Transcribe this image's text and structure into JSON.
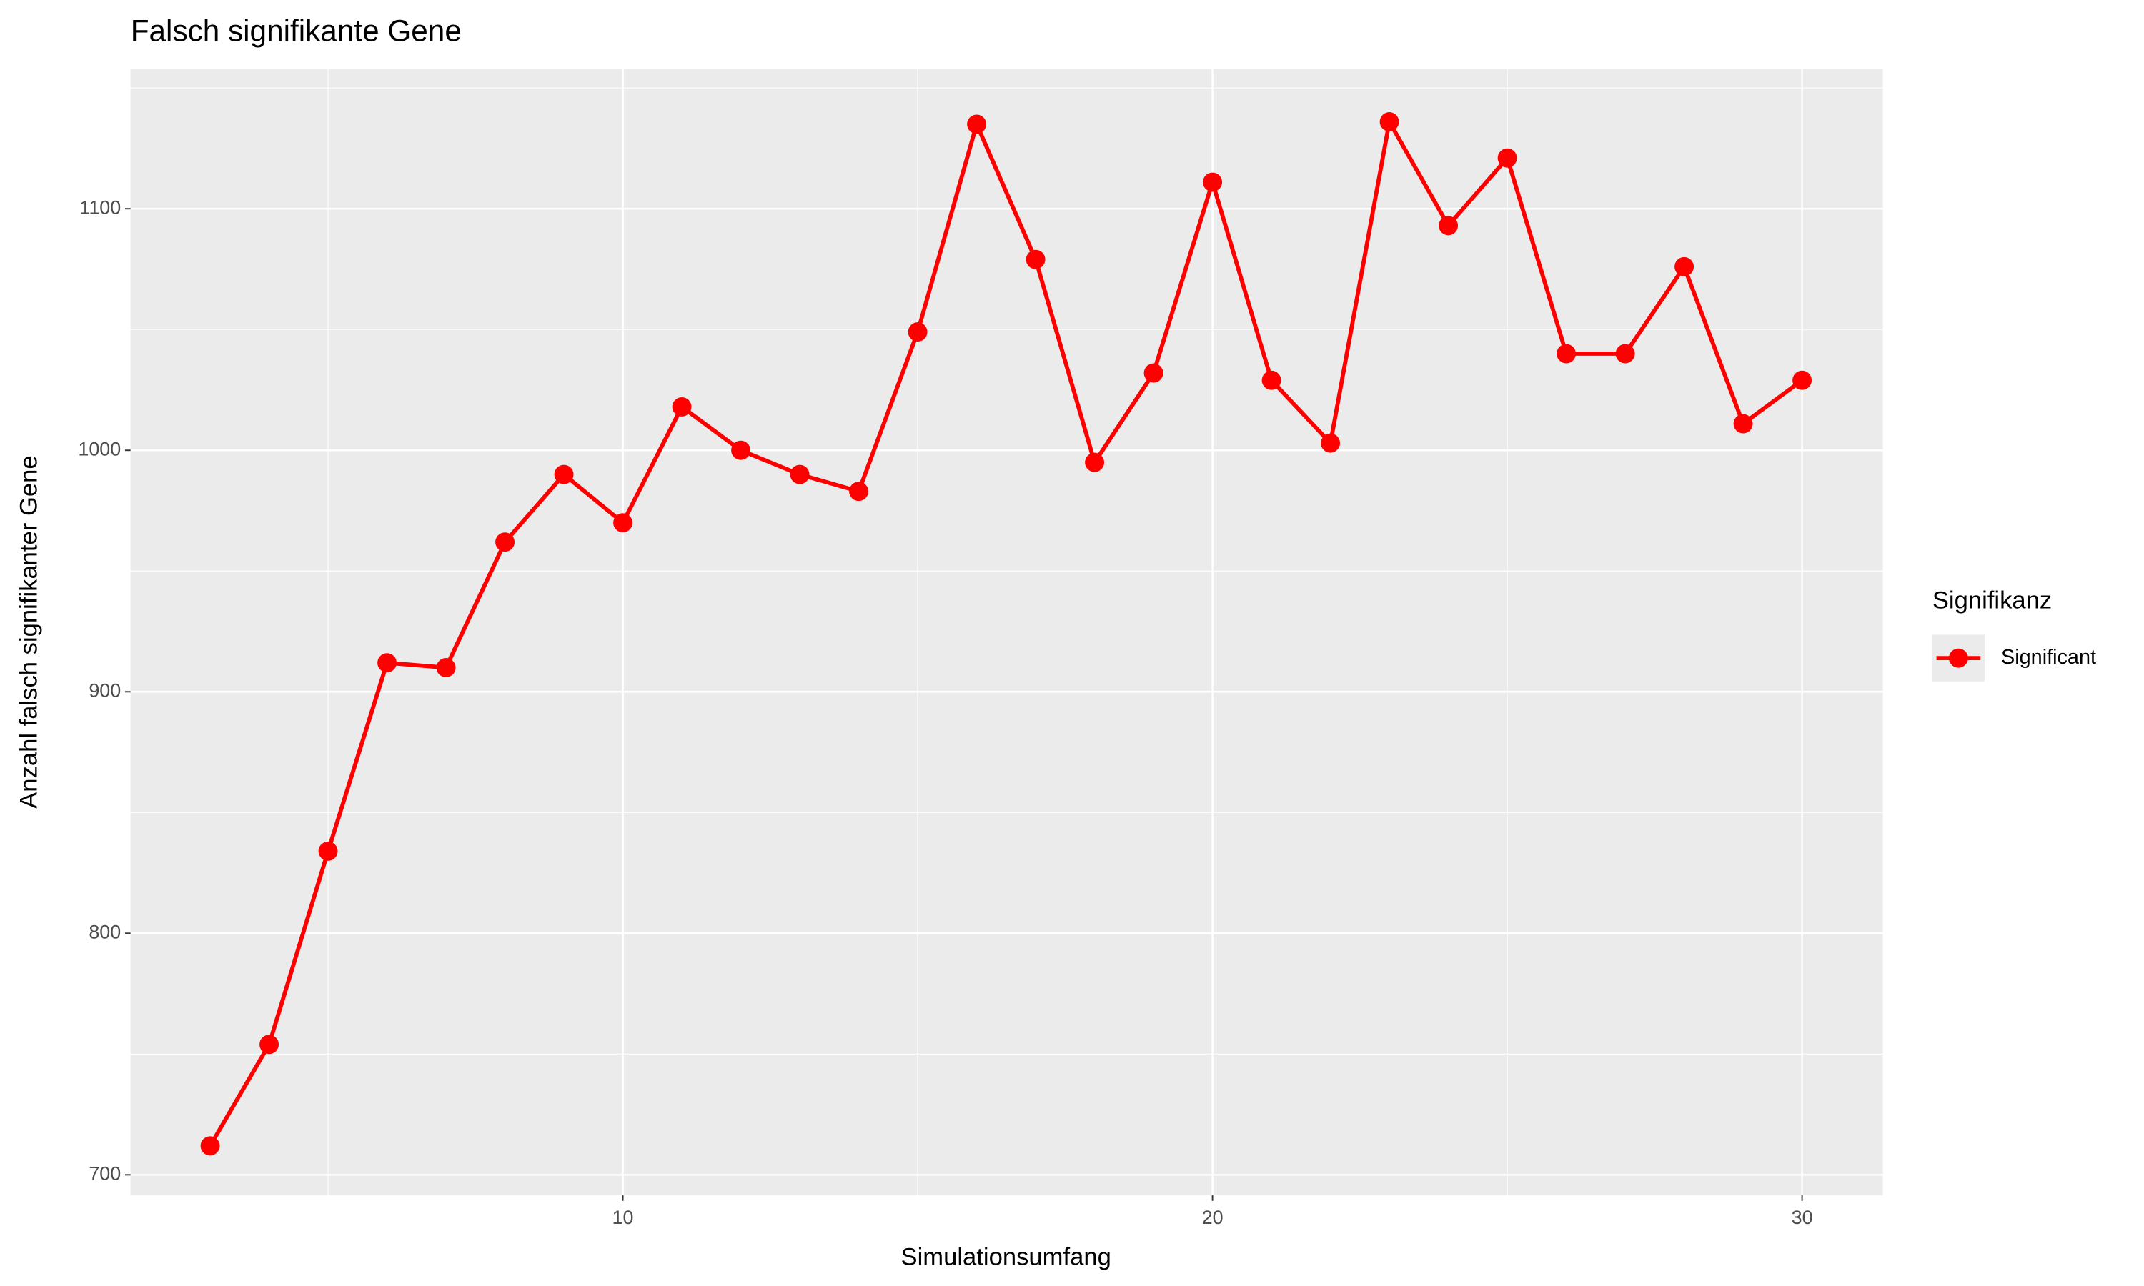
{
  "chart_data": {
    "type": "line",
    "title": "Falsch signifikante Gene",
    "x_label": "Simulationsumfang",
    "y_label": "Anzahl falsch signifikanter Gene",
    "legend_title": "Signifikanz",
    "legend_position": "right",
    "x": [
      3,
      4,
      5,
      6,
      7,
      8,
      9,
      10,
      11,
      12,
      13,
      14,
      15,
      16,
      17,
      18,
      19,
      20,
      21,
      22,
      23,
      24,
      25,
      26,
      27,
      28,
      29,
      30
    ],
    "series": [
      {
        "name": "Significant",
        "color": "#FF0000",
        "values": [
          712,
          754,
          834,
          912,
          910,
          962,
          990,
          970,
          1018,
          1000,
          990,
          983,
          1049,
          1135,
          1079,
          995,
          1032,
          1111,
          1029,
          1003,
          1136,
          1093,
          1121,
          1040,
          1040,
          1076,
          1011,
          1029
        ]
      }
    ],
    "xlim": [
      1.65,
      31.37
    ],
    "xticks": [
      10,
      20,
      30
    ],
    "ylim": [
      691.5,
      1158
    ],
    "yticks": [
      700,
      800,
      900,
      1000,
      1100
    ],
    "grid": true
  }
}
